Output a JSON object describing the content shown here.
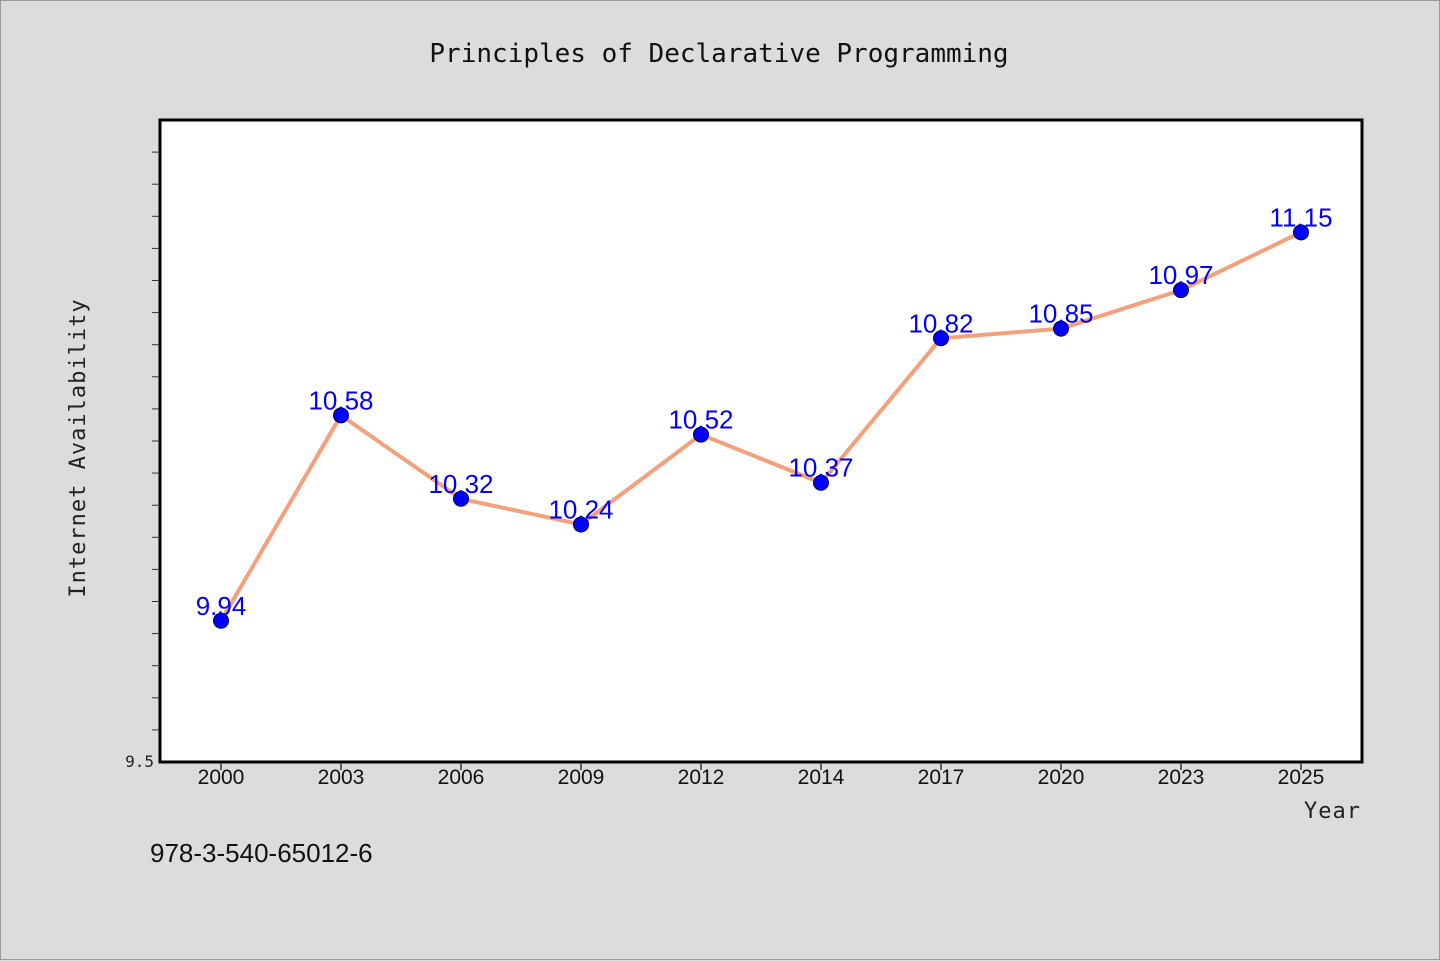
{
  "chart_data": {
    "type": "line",
    "title": "Principles of Declarative Programming",
    "xlabel": "Year",
    "ylabel": "Internet Availability",
    "categories": [
      "2000",
      "2003",
      "2006",
      "2009",
      "2012",
      "2014",
      "2017",
      "2020",
      "2023",
      "2025"
    ],
    "values": [
      9.94,
      10.58,
      10.32,
      10.24,
      10.52,
      10.37,
      10.82,
      10.85,
      10.97,
      11.15
    ],
    "data_labels": [
      "9.94",
      "10.58",
      "10.32",
      "10.24",
      "10.52",
      "10.37",
      "10.82",
      "10.85",
      "10.97",
      "11.15"
    ],
    "ylim": [
      9.5,
      11.5
    ],
    "y_tick_labels": [
      "9.5"
    ],
    "grid": false,
    "line_color": "#f4a07a",
    "marker_color": "#0000ff",
    "label_color": "#0000ff"
  },
  "footer": {
    "isbn": "978-3-540-65012-6"
  }
}
